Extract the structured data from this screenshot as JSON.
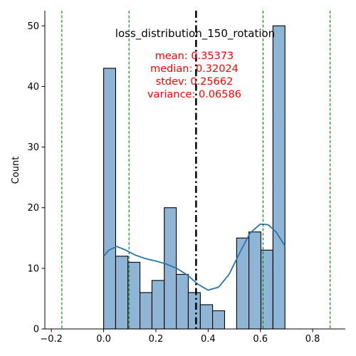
{
  "chart_data": {
    "type": "histogram",
    "title": "loss_distribution_150_rotation",
    "xlabel": "",
    "ylabel": "Count",
    "xlim": [
      -0.225,
      0.925
    ],
    "ylim": [
      0,
      52.5
    ],
    "xticks": [
      -0.2,
      0.0,
      0.2,
      0.4,
      0.6,
      0.8
    ],
    "xtick_labels": [
      "−0.2",
      "0.0",
      "0.2",
      "0.4",
      "0.6",
      "0.8"
    ],
    "yticks": [
      0,
      10,
      20,
      30,
      40,
      50
    ],
    "ytick_labels": [
      "0",
      "10",
      "20",
      "30",
      "40",
      "50"
    ],
    "bin_edges": [
      0.0,
      0.046,
      0.093,
      0.139,
      0.185,
      0.232,
      0.278,
      0.324,
      0.37,
      0.417,
      0.463,
      0.509,
      0.556,
      0.602,
      0.648,
      0.694
    ],
    "counts": [
      43,
      12,
      11,
      6,
      8,
      20,
      9,
      6,
      4,
      3,
      0,
      15,
      16,
      13,
      50
    ],
    "kde": {
      "x": [
        0.0,
        0.02,
        0.05,
        0.08,
        0.12,
        0.16,
        0.2,
        0.24,
        0.28,
        0.32,
        0.36,
        0.4,
        0.44,
        0.48,
        0.52,
        0.56,
        0.6,
        0.63,
        0.66,
        0.694
      ],
      "y": [
        12,
        13,
        13.6,
        13.1,
        12.2,
        11.6,
        11.2,
        10.7,
        10.0,
        8.9,
        7.4,
        6.4,
        6.9,
        9.0,
        12.5,
        15.8,
        17.3,
        17.2,
        16.0,
        13.7
      ]
    },
    "mean_line": 0.35373,
    "std_lines": [
      -0.16,
      0.0971,
      0.61,
      0.8669
    ],
    "stats_lines": [
      "mean: 0.35373",
      "median: 0.32024",
      "stdev: 0.25662",
      "variance: 0.06586"
    ],
    "colors": {
      "bar_fill": "#8fb5d6",
      "bar_edge": "#000000",
      "kde": "#2a74b0",
      "mean_line": "#000000",
      "std_line": "#008000",
      "stats_text": "#ff0000"
    }
  }
}
